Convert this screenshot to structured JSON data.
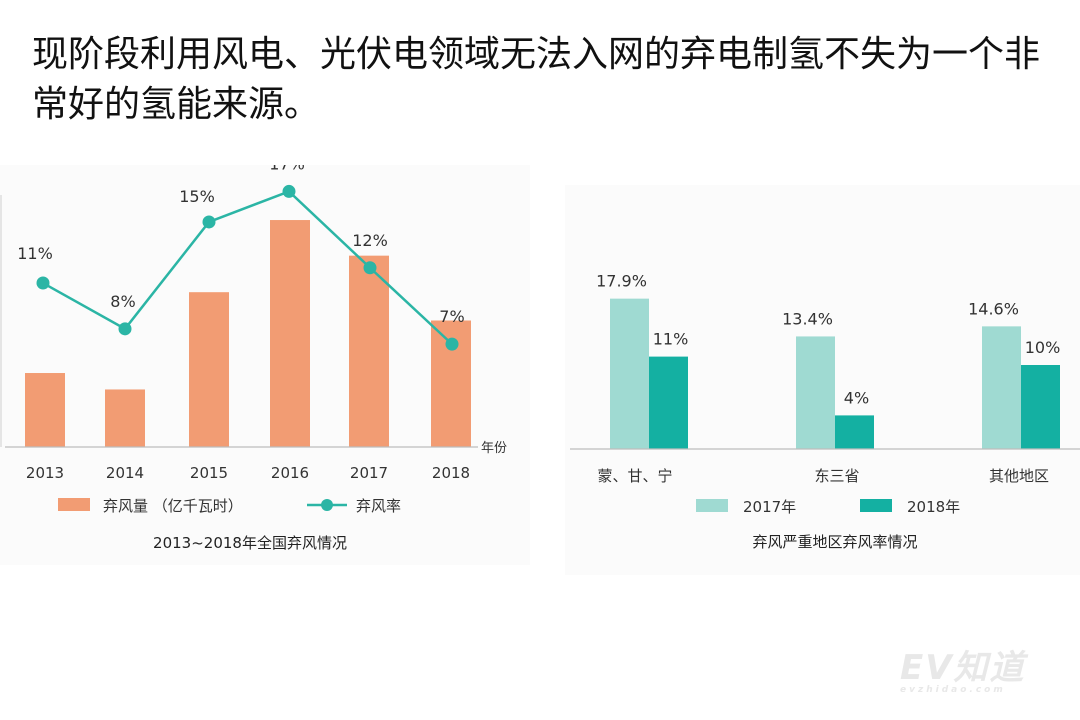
{
  "headline": "现阶段利用风电、光伏电领域无法入网的弃电制氢不失为一个非常好的氢能来源。",
  "watermark": {
    "main": "EV知道",
    "sub": "evzhidao.com"
  },
  "colors": {
    "bar": "#f29c73",
    "line": "#2bb5a5",
    "light_teal": "#9fdad2",
    "dark_teal": "#14b0a2"
  },
  "chart_data": [
    {
      "type": "bar",
      "categories": [
        "2013",
        "2014",
        "2015",
        "2016",
        "2017",
        "2018"
      ],
      "x_unit": "年份",
      "series": [
        {
          "name": "弃风量 （亿千瓦时）",
          "type": "bar",
          "values": [
            162,
            126,
            339,
            497,
            419,
            277
          ]
        },
        {
          "name": "弃风率",
          "type": "line",
          "values": [
            11,
            8,
            15,
            17,
            12,
            7
          ],
          "labels": [
            "11%",
            "8%",
            "15%",
            "17%",
            "12%",
            "7%"
          ]
        }
      ],
      "title": "2013~2018年全国弃风情况",
      "legend": "bottom",
      "grid": false
    },
    {
      "type": "bar",
      "categories": [
        "蒙、甘、宁",
        "东三省",
        "其他地区"
      ],
      "series": [
        {
          "name": "2017年",
          "values": [
            17.9,
            13.4,
            14.6
          ],
          "labels": [
            "17.9%",
            "13.4%",
            "14.6%"
          ]
        },
        {
          "name": "2018年",
          "values": [
            11,
            4,
            10
          ],
          "labels": [
            "11%",
            "4%",
            "10%"
          ]
        }
      ],
      "title": "弃风严重地区弃风率情况",
      "ylim": [
        0,
        20
      ],
      "legend": "bottom",
      "grid": false
    }
  ]
}
